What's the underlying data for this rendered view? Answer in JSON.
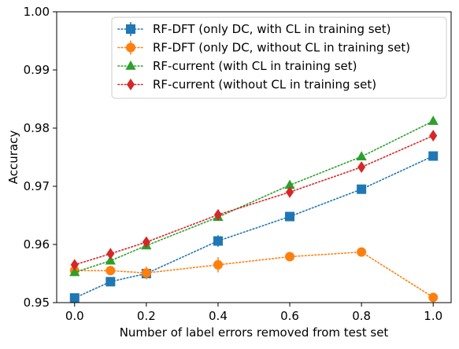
{
  "chart_data": {
    "type": "line",
    "title": "",
    "xlabel": "Number of label errors removed from test set",
    "ylabel": "Accuracy",
    "xlim": [
      -0.05,
      1.05
    ],
    "ylim": [
      0.95,
      1.0
    ],
    "x_ticks": [
      "0.0",
      "0.2",
      "0.4",
      "0.6",
      "0.8",
      "1.0"
    ],
    "y_ticks": [
      "0.95",
      "0.96",
      "0.97",
      "0.98",
      "0.99",
      "1.00"
    ],
    "grid": false,
    "legend_position": "top-right",
    "line_style": "dotted",
    "series": [
      {
        "name": "RF-DFT (only DC, with CL in training set)",
        "color": "#1f77b4",
        "marker": "square",
        "x": [
          0.0,
          0.1,
          0.2,
          0.4,
          0.6,
          0.8,
          1.0
        ],
        "y": [
          0.9508,
          0.9536,
          0.955,
          0.9606,
          0.9648,
          0.9695,
          0.9752
        ],
        "error": [
          0.0,
          0.0007,
          0.0008,
          0.001,
          0.0004,
          0.0004,
          0.0
        ]
      },
      {
        "name": "RF-DFT (only DC, without CL in training set)",
        "color": "#ff7f0e",
        "marker": "circle",
        "x": [
          0.0,
          0.1,
          0.2,
          0.4,
          0.6,
          0.8,
          1.0
        ],
        "y": [
          0.9555,
          0.9555,
          0.9551,
          0.9565,
          0.9579,
          0.9587,
          0.9509
        ],
        "error": [
          0.0,
          0.0004,
          0.0011,
          0.0013,
          0.0004,
          0.0003,
          0.0
        ]
      },
      {
        "name": "RF-current (with CL in training set)",
        "color": "#2ca02c",
        "marker": "triangle",
        "x": [
          0.0,
          0.1,
          0.2,
          0.4,
          0.6,
          0.8,
          1.0
        ],
        "y": [
          0.9552,
          0.9572,
          0.9598,
          0.9647,
          0.9702,
          0.9751,
          0.9812
        ],
        "error": [
          0.0,
          0.0,
          0.0,
          0.0,
          0.0,
          0.0,
          0.0
        ]
      },
      {
        "name": "RF-current (without CL in training set)",
        "color": "#d62728",
        "marker": "diamond",
        "x": [
          0.0,
          0.1,
          0.2,
          0.4,
          0.6,
          0.8,
          1.0
        ],
        "y": [
          0.9565,
          0.9584,
          0.9604,
          0.9651,
          0.969,
          0.9733,
          0.9787
        ],
        "error": [
          0.0,
          0.0,
          0.0,
          0.0,
          0.0,
          0.0,
          0.0
        ]
      }
    ]
  }
}
